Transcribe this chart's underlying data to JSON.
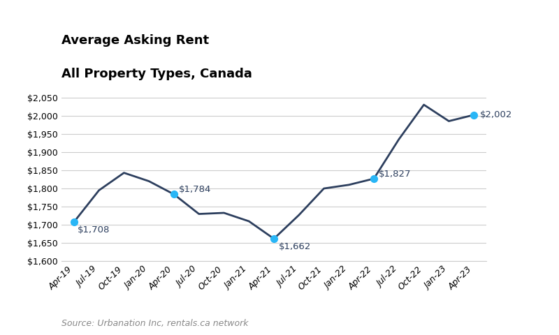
{
  "title_line1": "Average Asking Rent",
  "title_line2": "All Property Types, Canada",
  "source": "Source: Urbanation Inc, rentals.ca network",
  "x_labels": [
    "Apr-19",
    "Jul-19",
    "Oct-19",
    "Jan-20",
    "Apr-20",
    "Jul-20",
    "Oct-20",
    "Jan-21",
    "Apr-21",
    "Jul-21",
    "Oct-21",
    "Jan-22",
    "Apr-22",
    "Jul-22",
    "Oct-22",
    "Jan-23",
    "Apr-23"
  ],
  "y_values": [
    1708,
    1795,
    1843,
    1820,
    1784,
    1730,
    1733,
    1710,
    1662,
    1727,
    1800,
    1810,
    1827,
    1935,
    2030,
    1985,
    2002
  ],
  "highlighted_points": {
    "Apr-19": 1708,
    "Apr-20": 1784,
    "Apr-21": 1662,
    "Apr-22": 1827,
    "Apr-23": 2002
  },
  "highlight_labels": {
    "Apr-19": "$1,708",
    "Apr-20": "$1,784",
    "Apr-21": "$1,662",
    "Apr-22": "$1,827",
    "Apr-23": "$2,002"
  },
  "line_color": "#2d3f5e",
  "highlight_color": "#29b6f6",
  "ylim": [
    1600,
    2060
  ],
  "yticks": [
    1600,
    1650,
    1700,
    1750,
    1800,
    1850,
    1900,
    1950,
    2000,
    2050
  ],
  "background_color": "#ffffff",
  "grid_color": "#cccccc",
  "title_fontsize": 13,
  "axis_fontsize": 9,
  "source_fontsize": 9,
  "label_fontsize": 9.5
}
